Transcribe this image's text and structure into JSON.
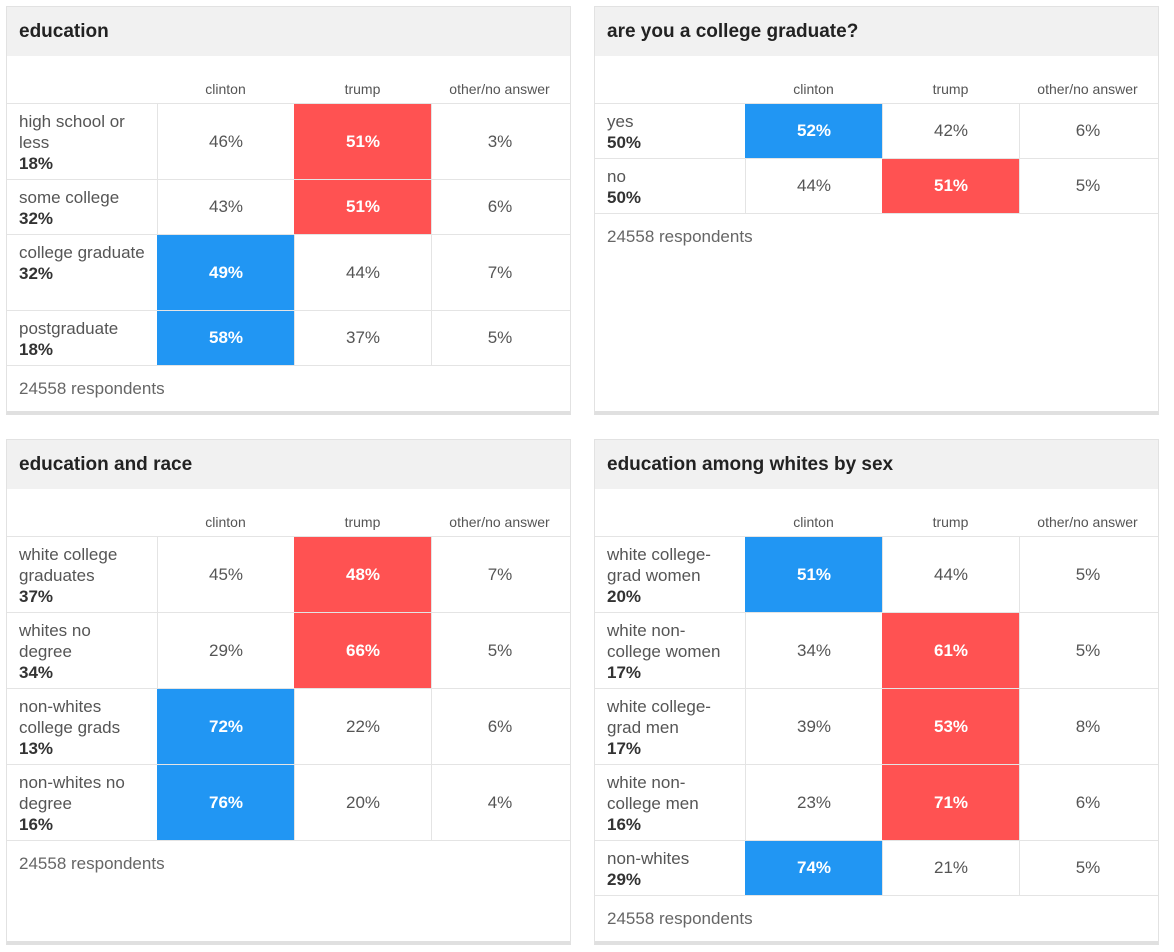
{
  "colors": {
    "clinton": "#2196f3",
    "trump": "#ff5252"
  },
  "chart_data": [
    {
      "type": "table",
      "title": "education",
      "columns": [
        "clinton",
        "trump",
        "other/no answer"
      ],
      "rows": [
        {
          "label": "high school or less",
          "share": "18%",
          "values": [
            "46%",
            "51%",
            "3%"
          ],
          "winner": 1
        },
        {
          "label": "some college",
          "share": "32%",
          "values": [
            "43%",
            "51%",
            "6%"
          ],
          "winner": 1
        },
        {
          "label": "college graduate",
          "share": "32%",
          "values": [
            "49%",
            "44%",
            "7%"
          ],
          "winner": 0
        },
        {
          "label": "postgraduate",
          "share": "18%",
          "values": [
            "58%",
            "37%",
            "5%"
          ],
          "winner": 0
        }
      ],
      "footer": "24558 respondents"
    },
    {
      "type": "table",
      "title": "are you a college graduate?",
      "columns": [
        "clinton",
        "trump",
        "other/no answer"
      ],
      "rows": [
        {
          "label": "yes",
          "share": "50%",
          "values": [
            "52%",
            "42%",
            "6%"
          ],
          "winner": 0
        },
        {
          "label": "no",
          "share": "50%",
          "values": [
            "44%",
            "51%",
            "5%"
          ],
          "winner": 1
        }
      ],
      "footer": "24558 respondents"
    },
    {
      "type": "table",
      "title": "education and race",
      "columns": [
        "clinton",
        "trump",
        "other/no answer"
      ],
      "rows": [
        {
          "label": "white college graduates",
          "share": "37%",
          "values": [
            "45%",
            "48%",
            "7%"
          ],
          "winner": 1
        },
        {
          "label": "whites no degree",
          "share": "34%",
          "values": [
            "29%",
            "66%",
            "5%"
          ],
          "winner": 1
        },
        {
          "label": "non-whites college grads",
          "share": "13%",
          "values": [
            "72%",
            "22%",
            "6%"
          ],
          "winner": 0
        },
        {
          "label": "non-whites no degree",
          "share": "16%",
          "values": [
            "76%",
            "20%",
            "4%"
          ],
          "winner": 0
        }
      ],
      "footer": "24558 respondents"
    },
    {
      "type": "table",
      "title": "education among whites by sex",
      "columns": [
        "clinton",
        "trump",
        "other/no answer"
      ],
      "rows": [
        {
          "label": "white college-grad women",
          "share": "20%",
          "values": [
            "51%",
            "44%",
            "5%"
          ],
          "winner": 0
        },
        {
          "label": "white non-college women",
          "share": "17%",
          "values": [
            "34%",
            "61%",
            "5%"
          ],
          "winner": 1
        },
        {
          "label": "white college-grad men",
          "share": "17%",
          "values": [
            "39%",
            "53%",
            "8%"
          ],
          "winner": 1
        },
        {
          "label": "white non-college men",
          "share": "16%",
          "values": [
            "23%",
            "71%",
            "6%"
          ],
          "winner": 1
        },
        {
          "label": "non-whites",
          "share": "29%",
          "values": [
            "74%",
            "21%",
            "5%"
          ],
          "winner": 0
        }
      ],
      "footer": "24558 respondents"
    }
  ]
}
